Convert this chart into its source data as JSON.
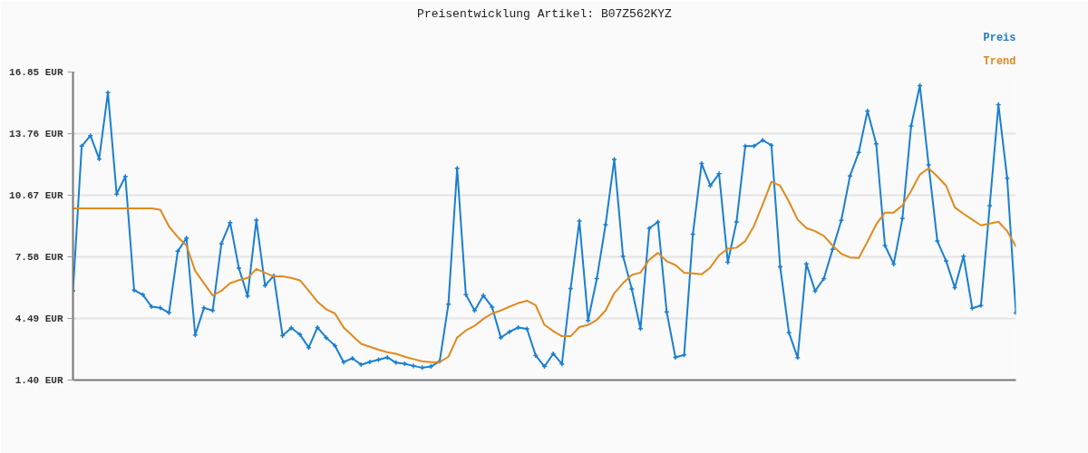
{
  "chart_data": {
    "type": "line",
    "title": "Preisentwicklung Artikel: B07Z562KYZ",
    "categories": [
      null,
      null,
      null,
      null,
      null,
      null,
      null,
      null,
      null,
      null,
      null,
      null,
      null,
      null,
      null,
      null,
      null,
      null,
      null,
      null,
      null,
      null,
      null,
      null,
      null,
      null,
      null,
      null,
      null,
      null,
      null,
      null,
      null,
      null,
      null,
      null,
      null,
      null,
      null,
      null,
      null,
      null,
      null,
      null,
      null,
      null,
      null,
      null,
      null,
      null,
      null,
      null,
      null,
      null,
      null,
      null,
      null,
      null,
      null,
      null,
      null,
      null,
      null,
      null,
      null,
      null,
      null,
      null,
      null,
      null,
      null,
      null,
      null,
      null,
      null,
      null,
      null,
      null,
      null,
      null,
      null,
      null,
      null,
      null,
      null,
      null,
      null,
      null,
      null,
      null,
      null,
      null,
      null,
      null,
      null,
      null,
      null,
      null,
      null,
      null,
      null,
      null,
      null,
      null,
      null,
      null,
      null,
      null,
      null
    ],
    "series": [
      {
        "name": "Preis",
        "color": "#1a7fd0",
        "marker": "cross",
        "values": [
          5.88,
          13.13,
          13.66,
          12.49,
          15.82,
          10.73,
          11.61,
          5.91,
          5.68,
          5.08,
          5.02,
          4.77,
          7.86,
          8.52,
          3.66,
          5.02,
          4.89,
          8.24,
          9.3,
          7.01,
          5.61,
          9.42,
          6.14,
          6.63,
          3.63,
          4.01,
          3.68,
          3.03,
          4.04,
          3.53,
          3.13,
          2.3,
          2.49,
          2.17,
          2.31,
          2.42,
          2.54,
          2.27,
          2.22,
          2.11,
          2.02,
          2.08,
          2.34,
          5.21,
          12.02,
          5.68,
          4.89,
          5.64,
          5.06,
          3.53,
          3.82,
          4.04,
          3.97,
          2.63,
          2.08,
          2.72,
          2.21,
          5.99,
          9.38,
          4.39,
          6.49,
          9.19,
          12.47,
          7.61,
          5.97,
          3.98,
          9.01,
          9.33,
          4.82,
          2.54,
          2.66,
          8.72,
          12.26,
          11.15,
          11.75,
          7.31,
          9.33,
          13.13,
          13.13,
          13.43,
          13.17,
          7.08,
          3.78,
          2.52,
          7.23,
          5.87,
          6.49,
          7.95,
          9.41,
          11.64,
          12.82,
          14.9,
          13.25,
          8.15,
          7.22,
          9.5,
          14.15,
          16.17,
          12.19,
          8.37,
          7.38,
          6.03,
          7.61,
          5.0,
          5.14,
          10.15,
          15.21,
          11.52,
          4.76
        ]
      },
      {
        "name": "Trend",
        "color": "#e08a1e",
        "values": [
          10.01,
          10.01,
          10.01,
          10.01,
          10.01,
          10.01,
          10.01,
          10.01,
          10.01,
          10.01,
          9.94,
          9.1,
          8.57,
          8.15,
          6.87,
          6.26,
          5.64,
          5.88,
          6.26,
          6.41,
          6.52,
          6.97,
          6.78,
          6.6,
          6.6,
          6.52,
          6.4,
          5.88,
          5.33,
          4.95,
          4.74,
          4.04,
          3.63,
          3.22,
          3.07,
          2.92,
          2.8,
          2.72,
          2.57,
          2.45,
          2.34,
          2.3,
          2.3,
          2.57,
          3.53,
          3.89,
          4.12,
          4.47,
          4.74,
          4.89,
          5.08,
          5.26,
          5.38,
          5.15,
          4.17,
          3.86,
          3.6,
          3.6,
          4.06,
          4.17,
          4.42,
          4.89,
          5.76,
          6.26,
          6.67,
          6.79,
          7.43,
          7.78,
          7.36,
          7.17,
          6.79,
          6.75,
          6.7,
          7.05,
          7.66,
          7.99,
          8.04,
          8.37,
          9.13,
          10.21,
          11.35,
          11.15,
          10.35,
          9.45,
          9.02,
          8.87,
          8.63,
          8.15,
          7.73,
          7.55,
          7.52,
          8.34,
          9.21,
          9.8,
          9.8,
          10.16,
          10.89,
          11.71,
          12.02,
          11.61,
          11.15,
          10.06,
          9.74,
          9.45,
          9.16,
          9.25,
          9.34,
          8.87,
          8.09
        ]
      }
    ],
    "ylim": [
      1.4,
      16.85
    ],
    "yticks": [
      {
        "value": 1.4,
        "label": "1.40 EUR"
      },
      {
        "value": 4.49,
        "label": "4.49 EUR"
      },
      {
        "value": 7.58,
        "label": "7.58 EUR"
      },
      {
        "value": 10.67,
        "label": "10.67 EUR"
      },
      {
        "value": 13.76,
        "label": "13.76 EUR"
      },
      {
        "value": 16.85,
        "label": "16.85 EUR"
      }
    ],
    "tick_labels": "y",
    "grid": "y",
    "line_style": "solid"
  }
}
